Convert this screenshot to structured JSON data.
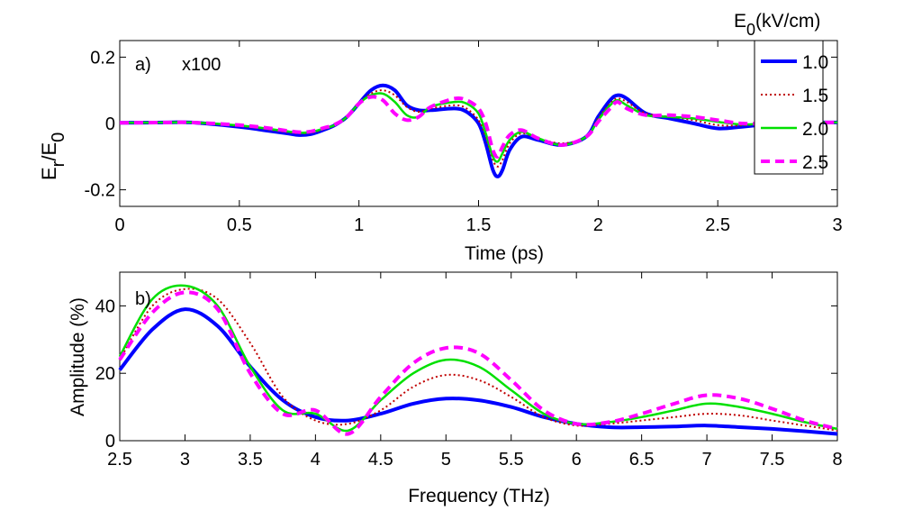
{
  "chart_data": [
    {
      "type": "line",
      "panel_label": "a)",
      "annotation": "x100",
      "title": "",
      "xlabel": "Time (ps)",
      "ylabel_main": "E",
      "ylabel_sub1": "r",
      "ylabel_slash": "/E",
      "ylabel_sub2": "0",
      "xlim": [
        0,
        3
      ],
      "ylim": [
        -0.25,
        0.25
      ],
      "xticks": [
        0,
        0.5,
        1,
        1.5,
        2,
        2.5,
        3
      ],
      "xtick_labels": [
        "0",
        "0.5",
        "1",
        "1.5",
        "2",
        "2.5",
        "3"
      ],
      "yticks": [
        -0.2,
        0,
        0.2
      ],
      "ytick_labels": [
        "-0.2",
        "0",
        "0.2"
      ],
      "legend": {
        "title_main": "E",
        "title_sub": "0",
        "title_unit": "(kV/cm)",
        "placement": "right"
      },
      "series": [
        {
          "name": "1.0",
          "color": "#0000ff",
          "style": "solid-thick",
          "x": [
            0,
            0.2,
            0.3,
            0.5,
            0.6,
            0.7,
            0.75,
            0.8,
            0.85,
            0.9,
            0.95,
            1.0,
            1.05,
            1.1,
            1.15,
            1.2,
            1.25,
            1.3,
            1.4,
            1.45,
            1.5,
            1.53,
            1.56,
            1.58,
            1.6,
            1.63,
            1.68,
            1.75,
            1.85,
            1.95,
            2.0,
            2.05,
            2.08,
            2.12,
            2.2,
            2.3,
            2.4,
            2.5,
            2.6,
            2.7,
            2.8,
            2.9,
            3.0
          ],
          "y": [
            0.002,
            0.003,
            0.003,
            -0.01,
            -0.02,
            -0.03,
            -0.035,
            -0.032,
            -0.02,
            -0.005,
            0.02,
            0.06,
            0.1,
            0.115,
            0.1,
            0.055,
            0.04,
            0.04,
            0.045,
            0.035,
            0.0,
            -0.06,
            -0.14,
            -0.16,
            -0.14,
            -0.08,
            -0.04,
            -0.05,
            -0.065,
            -0.04,
            0.02,
            0.07,
            0.085,
            0.075,
            0.03,
            0.015,
            0.0,
            -0.015,
            -0.01,
            -0.003,
            0.003,
            0.003,
            0.003
          ]
        },
        {
          "name": "1.5",
          "color": "#c00000",
          "style": "dotted",
          "x": [
            0,
            0.2,
            0.3,
            0.5,
            0.6,
            0.7,
            0.75,
            0.8,
            0.85,
            0.9,
            0.95,
            1.0,
            1.05,
            1.1,
            1.15,
            1.2,
            1.25,
            1.3,
            1.4,
            1.45,
            1.5,
            1.53,
            1.56,
            1.58,
            1.6,
            1.63,
            1.68,
            1.75,
            1.85,
            1.95,
            2.0,
            2.05,
            2.08,
            2.12,
            2.2,
            2.3,
            2.4,
            2.5,
            2.6,
            2.7,
            2.8,
            2.9,
            3.0
          ],
          "y": [
            0.002,
            0.003,
            0.003,
            -0.008,
            -0.016,
            -0.026,
            -0.03,
            -0.028,
            -0.018,
            -0.005,
            0.02,
            0.06,
            0.09,
            0.1,
            0.085,
            0.05,
            0.035,
            0.045,
            0.055,
            0.045,
            0.01,
            -0.04,
            -0.11,
            -0.13,
            -0.11,
            -0.06,
            -0.03,
            -0.045,
            -0.06,
            -0.04,
            0.015,
            0.06,
            0.075,
            0.065,
            0.03,
            0.02,
            0.01,
            -0.005,
            -0.006,
            0.0,
            0.003,
            0.003,
            0.003
          ]
        },
        {
          "name": "2.0",
          "color": "#00e000",
          "style": "solid",
          "x": [
            0,
            0.2,
            0.3,
            0.5,
            0.6,
            0.7,
            0.75,
            0.8,
            0.85,
            0.9,
            0.95,
            1.0,
            1.05,
            1.1,
            1.15,
            1.2,
            1.25,
            1.3,
            1.4,
            1.45,
            1.5,
            1.53,
            1.56,
            1.58,
            1.6,
            1.63,
            1.68,
            1.75,
            1.85,
            1.95,
            2.0,
            2.05,
            2.08,
            2.12,
            2.2,
            2.3,
            2.4,
            2.5,
            2.6,
            2.7,
            2.8,
            2.9,
            3.0
          ],
          "y": [
            0.002,
            0.003,
            0.003,
            -0.006,
            -0.014,
            -0.024,
            -0.028,
            -0.026,
            -0.016,
            -0.005,
            0.02,
            0.06,
            0.085,
            0.09,
            0.065,
            0.025,
            0.02,
            0.05,
            0.065,
            0.06,
            0.03,
            -0.03,
            -0.1,
            -0.115,
            -0.09,
            -0.05,
            -0.025,
            -0.045,
            -0.065,
            -0.04,
            0.01,
            0.055,
            0.07,
            0.055,
            0.025,
            0.02,
            0.015,
            0.005,
            -0.003,
            0.0,
            0.003,
            0.003,
            0.003
          ]
        },
        {
          "name": "2.5",
          "color": "#ff00ff",
          "style": "dashed-thick",
          "x": [
            0,
            0.2,
            0.3,
            0.5,
            0.6,
            0.7,
            0.75,
            0.8,
            0.85,
            0.9,
            0.95,
            1.0,
            1.05,
            1.1,
            1.15,
            1.2,
            1.25,
            1.3,
            1.4,
            1.45,
            1.5,
            1.53,
            1.56,
            1.58,
            1.6,
            1.63,
            1.68,
            1.75,
            1.85,
            1.95,
            2.0,
            2.05,
            2.08,
            2.12,
            2.2,
            2.3,
            2.4,
            2.5,
            2.6,
            2.7,
            2.8,
            2.9,
            3.0
          ],
          "y": [
            0.002,
            0.003,
            0.003,
            -0.005,
            -0.012,
            -0.022,
            -0.026,
            -0.024,
            -0.014,
            -0.003,
            0.02,
            0.06,
            0.08,
            0.07,
            0.03,
            0.01,
            0.02,
            0.05,
            0.075,
            0.07,
            0.045,
            0.0,
            -0.08,
            -0.1,
            -0.07,
            -0.035,
            -0.02,
            -0.045,
            -0.065,
            -0.04,
            0.005,
            0.045,
            0.065,
            0.045,
            0.025,
            0.025,
            0.02,
            0.01,
            0.0,
            0.0,
            0.003,
            0.003,
            0.003
          ]
        }
      ]
    },
    {
      "type": "line",
      "panel_label": "b)",
      "title": "",
      "xlabel": "Frequency (THz)",
      "ylabel": "Amplitude (%)",
      "xlim": [
        2.5,
        8
      ],
      "ylim": [
        0,
        50
      ],
      "xticks": [
        2.5,
        3,
        3.5,
        4,
        4.5,
        5,
        5.5,
        6,
        6.5,
        7,
        7.5,
        8
      ],
      "xtick_labels": [
        "2.5",
        "3",
        "3.5",
        "4",
        "4.5",
        "5",
        "5.5",
        "6",
        "6.5",
        "7",
        "7.5",
        "8"
      ],
      "yticks": [
        0,
        20,
        40
      ],
      "ytick_labels": [
        "0",
        "20",
        "40"
      ],
      "series": [
        {
          "name": "1.0",
          "color": "#0000ff",
          "style": "solid-thick",
          "x": [
            2.5,
            2.75,
            3.0,
            3.25,
            3.5,
            3.75,
            4.0,
            4.25,
            4.5,
            4.75,
            5.0,
            5.25,
            5.5,
            5.75,
            6.0,
            6.25,
            6.5,
            6.75,
            7.0,
            7.25,
            7.5,
            7.75,
            8.0
          ],
          "y": [
            21,
            33,
            39,
            34,
            22,
            12,
            7,
            6,
            8,
            11,
            12.5,
            12,
            10,
            7,
            5,
            4,
            4,
            4.2,
            4.5,
            4,
            3.5,
            2.8,
            2
          ]
        },
        {
          "name": "1.5",
          "color": "#c00000",
          "style": "dotted",
          "x": [
            2.5,
            2.75,
            3.0,
            3.25,
            3.5,
            3.75,
            4.0,
            4.25,
            4.5,
            4.75,
            5.0,
            5.25,
            5.5,
            5.75,
            6.0,
            6.25,
            6.5,
            6.75,
            7.0,
            7.25,
            7.5,
            7.75,
            8.0
          ],
          "y": [
            24,
            40,
            45,
            42,
            29,
            13,
            6,
            5,
            9,
            16,
            19.5,
            18,
            13,
            7,
            4.5,
            5,
            6,
            7,
            8,
            7.5,
            6,
            4.5,
            3
          ]
        },
        {
          "name": "2.0",
          "color": "#00e000",
          "style": "solid",
          "x": [
            2.5,
            2.75,
            3.0,
            3.25,
            3.5,
            3.75,
            4.0,
            4.25,
            4.5,
            4.75,
            5.0,
            5.25,
            5.5,
            5.75,
            6.0,
            6.25,
            6.5,
            6.75,
            7.0,
            7.25,
            7.5,
            7.75,
            8.0
          ],
          "y": [
            25,
            42,
            46,
            40,
            22,
            9,
            8,
            3,
            12,
            20,
            24,
            22,
            15,
            8,
            5,
            5.5,
            7,
            9,
            11,
            10,
            8,
            5.5,
            3.5
          ]
        },
        {
          "name": "2.5",
          "color": "#ff00ff",
          "style": "dashed-thick",
          "x": [
            2.5,
            2.75,
            3.0,
            3.25,
            3.5,
            3.75,
            4.0,
            4.25,
            4.5,
            4.75,
            5.0,
            5.25,
            5.5,
            5.75,
            6.0,
            6.25,
            6.5,
            6.75,
            7.0,
            7.25,
            7.5,
            7.75,
            8.0
          ],
          "y": [
            24,
            38,
            44,
            39,
            20,
            8,
            9,
            2,
            13,
            23,
            27.5,
            26,
            18,
            9,
            5,
            5.5,
            8,
            11,
            13.5,
            12.5,
            9.5,
            6,
            3.5
          ]
        }
      ]
    }
  ]
}
